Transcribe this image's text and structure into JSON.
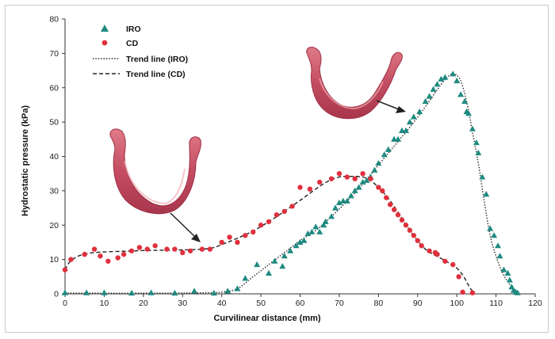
{
  "chart_data": {
    "type": "scatter",
    "xlabel": "Curvilinear distance (mm)",
    "ylabel": "Hydrostatic pressure (kPa)",
    "xlim": [
      0,
      120
    ],
    "ylim": [
      0,
      80
    ],
    "x_ticks": [
      0,
      10,
      20,
      30,
      40,
      50,
      60,
      70,
      80,
      90,
      100,
      110,
      120
    ],
    "y_ticks": [
      0,
      10,
      20,
      30,
      40,
      50,
      60,
      70,
      80
    ],
    "grid": false,
    "legend_position": "top-left",
    "legend": [
      {
        "label": "IRO",
        "marker": "triangle"
      },
      {
        "label": "CD",
        "marker": "circle"
      },
      {
        "label": "Trend line (IRO)",
        "style": "dotted"
      },
      {
        "label": "Trend line (CD)",
        "style": "dashed"
      }
    ],
    "colors": {
      "IRO": "#1f8a80",
      "CD": "#e0303c",
      "trend": "#222222"
    },
    "series": [
      {
        "name": "IRO",
        "points": [
          [
            0,
            0.3
          ],
          [
            5.5,
            0.3
          ],
          [
            10,
            0.3
          ],
          [
            17,
            0.2
          ],
          [
            22,
            0.3
          ],
          [
            28,
            0.2
          ],
          [
            33,
            0.8
          ],
          [
            38,
            0.2
          ],
          [
            41.5,
            0.8
          ],
          [
            44,
            1.5
          ],
          [
            46,
            4.5
          ],
          [
            49,
            8.5
          ],
          [
            52,
            6
          ],
          [
            53.5,
            9.5
          ],
          [
            55.5,
            8
          ],
          [
            56,
            11
          ],
          [
            57.5,
            12.5
          ],
          [
            59,
            14
          ],
          [
            60,
            15
          ],
          [
            61,
            15.5
          ],
          [
            62,
            17.5
          ],
          [
            63,
            18
          ],
          [
            64,
            19.5
          ],
          [
            65,
            18
          ],
          [
            66,
            20
          ],
          [
            66.5,
            21
          ],
          [
            68,
            22.5
          ],
          [
            69,
            25
          ],
          [
            70,
            26.5
          ],
          [
            71,
            27
          ],
          [
            72,
            27
          ],
          [
            73,
            28.5
          ],
          [
            74,
            30
          ],
          [
            75,
            31
          ],
          [
            76,
            32.5
          ],
          [
            77,
            33
          ],
          [
            78,
            34
          ],
          [
            79,
            36
          ],
          [
            80,
            38
          ],
          [
            81.5,
            40.5
          ],
          [
            82.5,
            42
          ],
          [
            84,
            45
          ],
          [
            85,
            45
          ],
          [
            86,
            47.5
          ],
          [
            87,
            47.5
          ],
          [
            88,
            50
          ],
          [
            89,
            51.5
          ],
          [
            90.5,
            53
          ],
          [
            92,
            56
          ],
          [
            93,
            57.5
          ],
          [
            94,
            59.5
          ],
          [
            95,
            61
          ],
          [
            96,
            62.5
          ],
          [
            97,
            63
          ],
          [
            99,
            64
          ],
          [
            100,
            62
          ],
          [
            101,
            58
          ],
          [
            102,
            56
          ],
          [
            102.5,
            53
          ],
          [
            103,
            52.5
          ],
          [
            104,
            48
          ],
          [
            105,
            44
          ],
          [
            105.5,
            41
          ],
          [
            106.5,
            34
          ],
          [
            107.5,
            29
          ],
          [
            108.5,
            19
          ],
          [
            109.5,
            17
          ],
          [
            110.5,
            14
          ],
          [
            111,
            11
          ],
          [
            112,
            7
          ],
          [
            113,
            6
          ],
          [
            113.5,
            4
          ],
          [
            114,
            2
          ],
          [
            114.5,
            1
          ],
          [
            115,
            0.5
          ],
          [
            115.5,
            0.3
          ]
        ]
      },
      {
        "name": "CD",
        "points": [
          [
            0,
            7
          ],
          [
            1.5,
            10
          ],
          [
            5,
            11.5
          ],
          [
            7.5,
            13
          ],
          [
            9,
            11
          ],
          [
            11,
            9.5
          ],
          [
            13.5,
            10.5
          ],
          [
            15,
            11.5
          ],
          [
            17,
            12.5
          ],
          [
            19,
            13.5
          ],
          [
            21,
            13
          ],
          [
            23,
            14
          ],
          [
            26,
            13
          ],
          [
            28,
            13
          ],
          [
            30,
            12
          ],
          [
            32,
            12.5
          ],
          [
            35,
            13
          ],
          [
            37,
            13
          ],
          [
            40,
            15
          ],
          [
            42,
            16.5
          ],
          [
            44,
            15
          ],
          [
            46,
            17
          ],
          [
            48,
            18
          ],
          [
            50,
            20
          ],
          [
            52,
            21
          ],
          [
            54,
            23
          ],
          [
            56,
            24
          ],
          [
            58,
            25.5
          ],
          [
            60,
            31
          ],
          [
            62.5,
            30.5
          ],
          [
            65,
            32.5
          ],
          [
            68,
            33.5
          ],
          [
            70,
            35
          ],
          [
            72,
            34
          ],
          [
            74,
            33.5
          ],
          [
            76,
            35
          ],
          [
            78,
            33.5
          ],
          [
            80,
            31
          ],
          [
            81,
            30
          ],
          [
            82,
            28
          ],
          [
            83,
            26
          ],
          [
            84,
            24.5
          ],
          [
            85,
            23
          ],
          [
            86,
            21.5
          ],
          [
            87,
            20
          ],
          [
            88,
            18.5
          ],
          [
            89,
            17
          ],
          [
            90,
            15.5
          ],
          [
            91,
            14
          ],
          [
            93,
            12.5
          ],
          [
            94.5,
            12
          ],
          [
            95,
            11.5
          ],
          [
            97,
            9.5
          ],
          [
            99,
            8.5
          ],
          [
            100.5,
            5
          ],
          [
            101.5,
            0.5
          ],
          [
            104,
            0.3
          ]
        ]
      }
    ],
    "trend_lines": [
      {
        "name": "Trend line (IRO)",
        "style": "dotted",
        "points": [
          [
            0,
            0.2
          ],
          [
            20,
            0.2
          ],
          [
            35,
            0.3
          ],
          [
            40,
            0.5
          ],
          [
            44,
            1.5
          ],
          [
            48,
            5
          ],
          [
            52,
            8.5
          ],
          [
            56,
            12
          ],
          [
            60,
            15.5
          ],
          [
            64,
            18.5
          ],
          [
            68,
            22.5
          ],
          [
            72,
            27
          ],
          [
            76,
            32
          ],
          [
            80,
            37.5
          ],
          [
            84,
            43
          ],
          [
            88,
            48.5
          ],
          [
            92,
            54.5
          ],
          [
            96,
            61
          ],
          [
            98,
            63.5
          ],
          [
            99.5,
            64
          ],
          [
            101,
            62
          ],
          [
            102.5,
            56
          ],
          [
            104,
            47
          ],
          [
            105.5,
            38
          ],
          [
            107,
            27
          ],
          [
            108.5,
            17
          ],
          [
            110,
            11
          ],
          [
            111.5,
            6.5
          ],
          [
            113,
            3.5
          ],
          [
            114.5,
            1.5
          ],
          [
            116,
            0.5
          ]
        ]
      },
      {
        "name": "Trend line (CD)",
        "style": "dashed",
        "points": [
          [
            0,
            7
          ],
          [
            1,
            9
          ],
          [
            3,
            10.8
          ],
          [
            6,
            11.8
          ],
          [
            10,
            12.2
          ],
          [
            15,
            12.4
          ],
          [
            20,
            12.6
          ],
          [
            25,
            12.7
          ],
          [
            30,
            12.8
          ],
          [
            35,
            13
          ],
          [
            38,
            13.5
          ],
          [
            41,
            14.8
          ],
          [
            44,
            16.2
          ],
          [
            48,
            18.3
          ],
          [
            52,
            21
          ],
          [
            56,
            24
          ],
          [
            60,
            27.2
          ],
          [
            64,
            30.5
          ],
          [
            67,
            32.7
          ],
          [
            70,
            34
          ],
          [
            73,
            34.2
          ],
          [
            76,
            34
          ],
          [
            78,
            33
          ],
          [
            80,
            31
          ],
          [
            82,
            28.5
          ],
          [
            84,
            25.5
          ],
          [
            86,
            22
          ],
          [
            88,
            18.5
          ],
          [
            90,
            15.5
          ],
          [
            92,
            13
          ],
          [
            94,
            11.5
          ],
          [
            96,
            10.3
          ],
          [
            98,
            9
          ],
          [
            100,
            7.5
          ],
          [
            101.5,
            5.5
          ],
          [
            102.5,
            3.5
          ],
          [
            103.5,
            1.5
          ],
          [
            104.5,
            0.3
          ]
        ]
      }
    ]
  }
}
